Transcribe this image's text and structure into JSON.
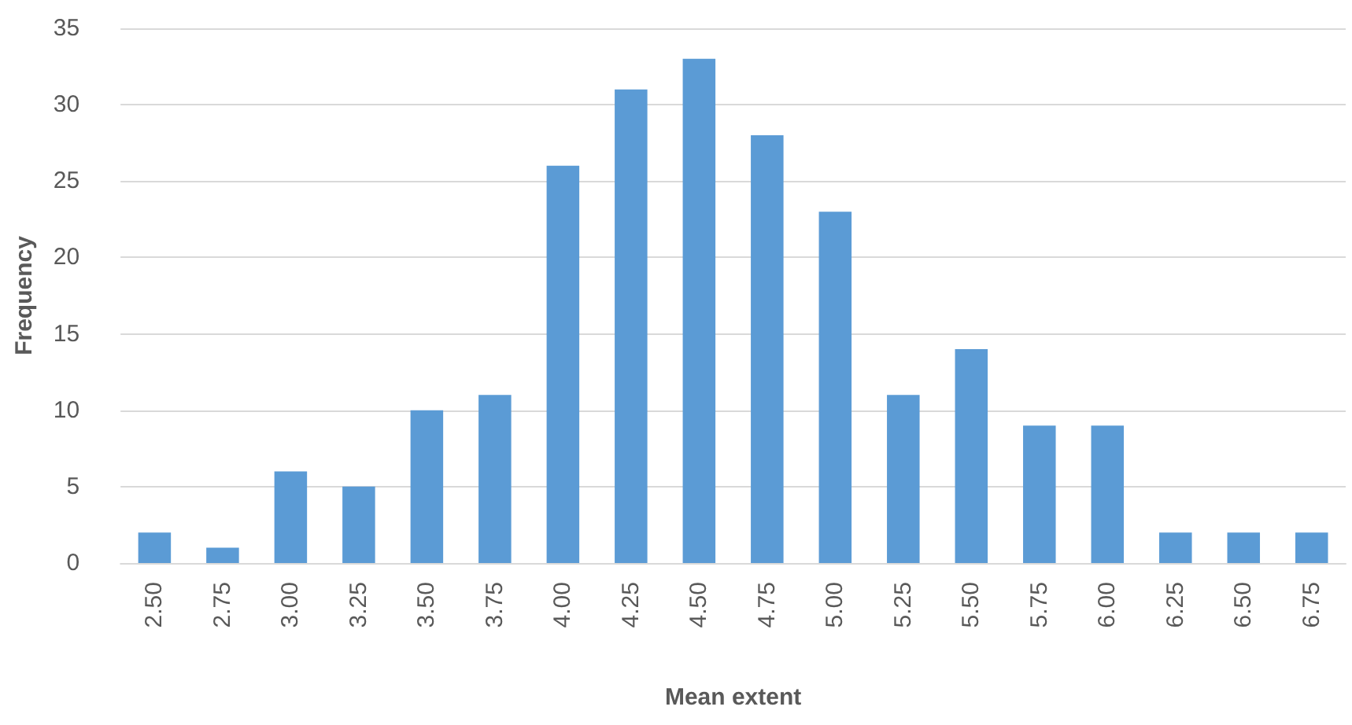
{
  "chart_data": {
    "type": "bar",
    "xlabel": "Mean extent",
    "ylabel": "Frequency",
    "categories": [
      "2.50",
      "2.75",
      "3.00",
      "3.25",
      "3.50",
      "3.75",
      "4.00",
      "4.25",
      "4.50",
      "4.75",
      "5.00",
      "5.25",
      "5.50",
      "5.75",
      "6.00",
      "6.25",
      "6.50",
      "6.75"
    ],
    "values": [
      2,
      1,
      6,
      5,
      10,
      11,
      26,
      31,
      33,
      28,
      23,
      11,
      14,
      9,
      9,
      2,
      2,
      2
    ],
    "color": "#5b9bd5",
    "ylim": [
      0,
      35
    ],
    "yticks": [
      0,
      5,
      10,
      15,
      20,
      25,
      30,
      35
    ],
    "grid": "y"
  }
}
